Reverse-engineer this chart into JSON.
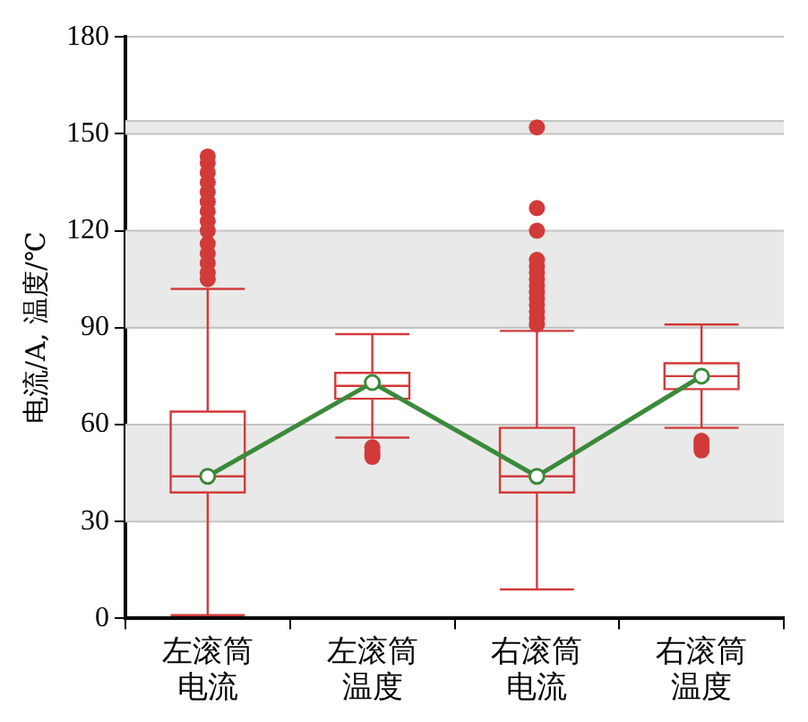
{
  "chart_data": {
    "type": "box",
    "ylabel": "电流/A, 温度/℃",
    "grid": "y",
    "categories": [
      "左滚筒电流",
      "左滚筒温度",
      "右滚筒电流",
      "右滚筒温度"
    ],
    "ylim": [
      0,
      180
    ],
    "yticks": [
      0,
      30,
      60,
      90,
      120,
      150,
      180
    ],
    "bands": [
      {
        "axis": "y",
        "from": 30,
        "to": 60,
        "color": "#e9e9e9"
      },
      {
        "axis": "y",
        "from": 90,
        "to": 120,
        "color": "#e9e9e9"
      },
      {
        "axis": "y",
        "from": 150,
        "to": 154,
        "color": "#e9e9e9"
      }
    ],
    "series": [
      {
        "type": "box",
        "color": "#d23a3a",
        "boxes": [
          {
            "low": 1,
            "q1": 39,
            "median": 44,
            "q3": 64,
            "high": 102,
            "outliers": [
              105,
              107,
              110,
              113,
              116,
              120,
              123,
              126,
              129,
              132,
              135,
              138,
              141,
              143
            ]
          },
          {
            "low": 56,
            "q1": 68,
            "median": 72,
            "q3": 76,
            "high": 88,
            "outliers": [
              50,
              51,
              52,
              53
            ]
          },
          {
            "low": 9,
            "q1": 39,
            "median": 44,
            "q3": 59,
            "high": 89,
            "outliers": [
              91,
              93,
              95,
              97,
              99,
              101,
              103,
              105,
              107,
              109,
              111,
              120,
              127,
              152
            ]
          },
          {
            "low": 59,
            "q1": 71,
            "median": 75,
            "q3": 79,
            "high": 91,
            "outliers": [
              52,
              53,
              54,
              55
            ]
          }
        ]
      },
      {
        "type": "line",
        "color": "#3a8a3a",
        "values": [
          44,
          73,
          44,
          75
        ],
        "marker": "circle"
      }
    ]
  }
}
